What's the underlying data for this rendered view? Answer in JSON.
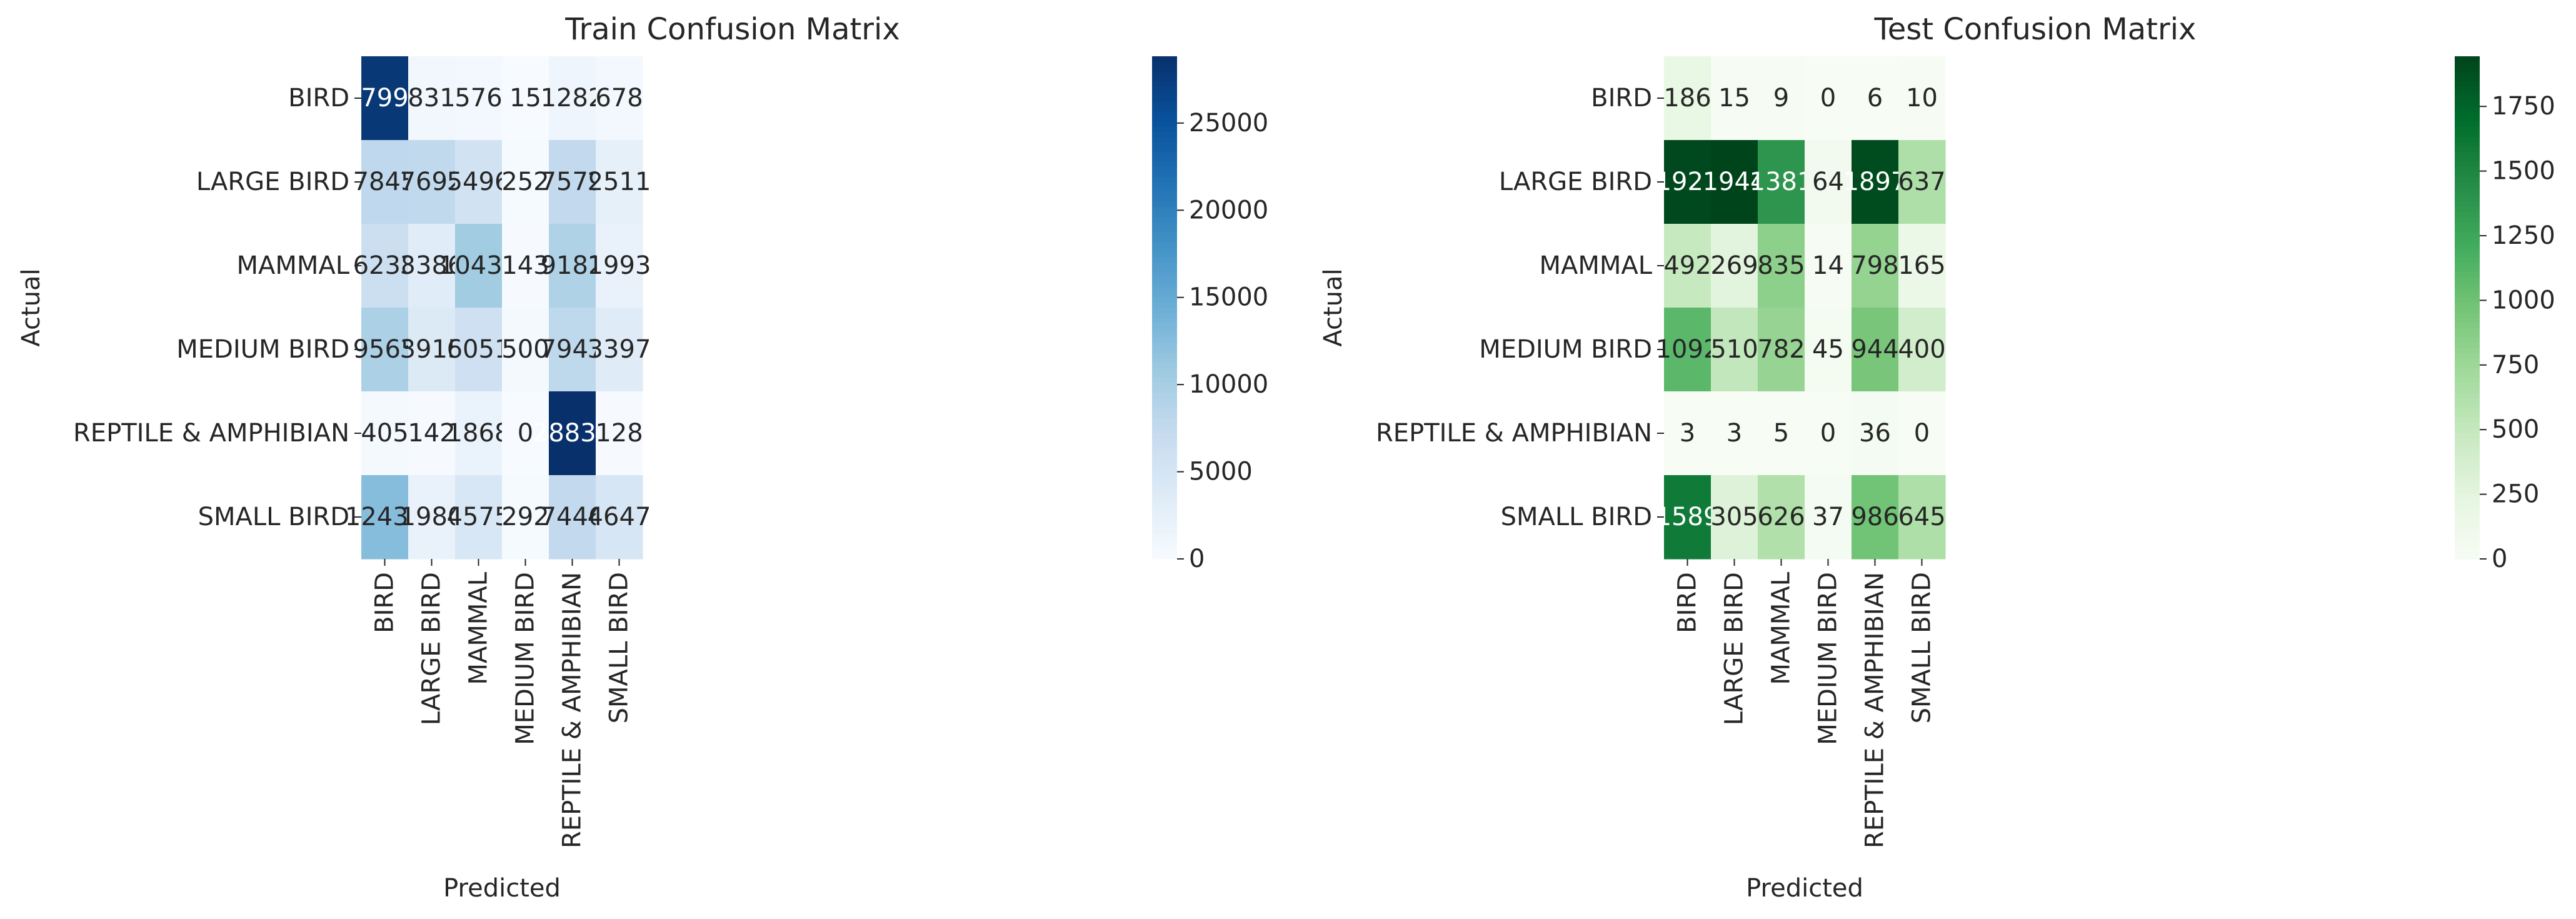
{
  "chart_data": [
    {
      "type": "heatmap",
      "title": "Train Confusion Matrix",
      "xlabel": "Predicted",
      "ylabel": "Actual",
      "x_categories": [
        "BIRD",
        "LARGE BIRD",
        "MAMMAL",
        "MEDIUM BIRD",
        "REPTILE & AMPHIBIAN",
        "SMALL BIRD"
      ],
      "y_categories": [
        "BIRD",
        "LARGE BIRD",
        "MAMMAL",
        "MEDIUM BIRD",
        "REPTILE & AMPHIBIAN",
        "SMALL BIRD"
      ],
      "values": [
        [
          27993,
          831,
          576,
          15,
          1282,
          678
        ],
        [
          7845,
          7692,
          5496,
          252,
          7579,
          2511
        ],
        [
          6238,
          3386,
          10433,
          143,
          9182,
          1993
        ],
        [
          9565,
          3915,
          6051,
          500,
          7947,
          3397
        ],
        [
          405,
          142,
          1868,
          0,
          28832,
          128
        ],
        [
          12435,
          1980,
          4575,
          292,
          7446,
          4647
        ]
      ],
      "colormap": "Blues",
      "colors": {
        "low": "#f7fbff",
        "high": "#08306b"
      },
      "colorbar": {
        "min": 0,
        "max": 28832,
        "ticks": [
          0,
          5000,
          10000,
          15000,
          20000,
          25000
        ]
      },
      "cell_labels": true
    },
    {
      "type": "heatmap",
      "title": "Test Confusion Matrix",
      "xlabel": "Predicted",
      "ylabel": "Actual",
      "x_categories": [
        "BIRD",
        "LARGE BIRD",
        "MAMMAL",
        "MEDIUM BIRD",
        "REPTILE & AMPHIBIAN",
        "SMALL BIRD"
      ],
      "y_categories": [
        "BIRD",
        "LARGE BIRD",
        "MAMMAL",
        "MEDIUM BIRD",
        "REPTILE & AMPHIBIAN",
        "SMALL BIRD"
      ],
      "values": [
        [
          186,
          15,
          9,
          0,
          6,
          10
        ],
        [
          1921,
          1944,
          1381,
          64,
          1897,
          637
        ],
        [
          492,
          269,
          835,
          14,
          798,
          165
        ],
        [
          1092,
          510,
          782,
          45,
          944,
          400
        ],
        [
          3,
          3,
          5,
          0,
          36,
          0
        ],
        [
          1589,
          305,
          626,
          37,
          986,
          645
        ]
      ],
      "colormap": "Greens",
      "colors": {
        "low": "#f7fcf5",
        "high": "#00441b"
      },
      "colorbar": {
        "min": 0,
        "max": 1944,
        "ticks": [
          0,
          250,
          500,
          750,
          1000,
          1250,
          1500,
          1750
        ]
      },
      "cell_labels": true
    }
  ]
}
